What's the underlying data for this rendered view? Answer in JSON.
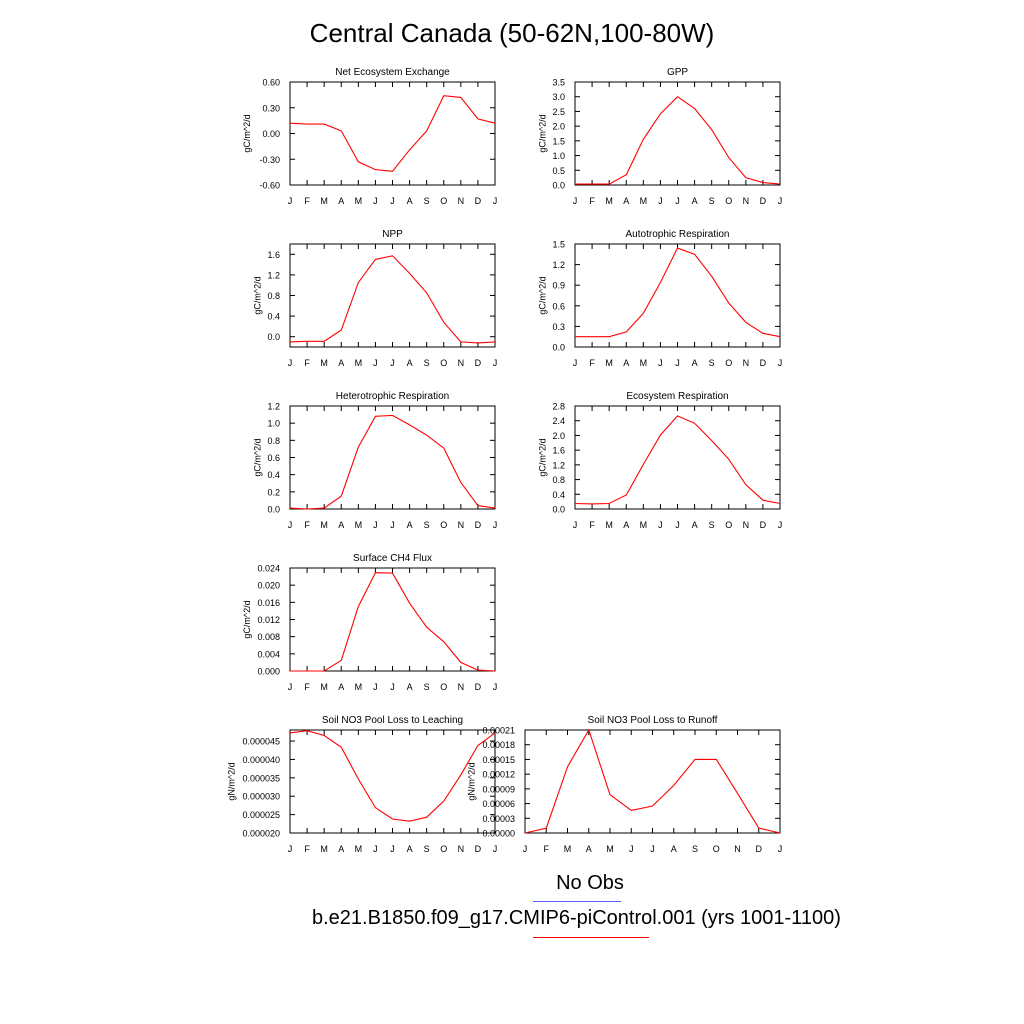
{
  "title": "Central Canada (50-62N,100-80W)",
  "legend": {
    "obs_label": "No Obs",
    "obs_color": "#5b5bff",
    "model_label": "b.e21.B1850.f09_g17.CMIP6-piControl.001 (yrs 1001-1100)",
    "model_color": "#ff0000"
  },
  "chart_data": [
    {
      "type": "line",
      "title": "Net Ecosystem Exchange",
      "ylabel": "gC/m^2/d",
      "categories": [
        "J",
        "F",
        "M",
        "A",
        "M",
        "J",
        "J",
        "A",
        "S",
        "O",
        "N",
        "D",
        "J"
      ],
      "ylim": [
        -0.6,
        0.6
      ],
      "yticks": [
        "0.60",
        "0.30",
        "0.00",
        "-0.30",
        "-0.60"
      ],
      "series": [
        {
          "values": [
            0.12,
            0.11,
            0.11,
            0.03,
            -0.33,
            -0.42,
            -0.44,
            -0.19,
            0.03,
            0.44,
            0.42,
            0.17,
            0.12
          ]
        }
      ]
    },
    {
      "type": "line",
      "title": "GPP",
      "ylabel": "gC/m^2/d",
      "categories": [
        "J",
        "F",
        "M",
        "A",
        "M",
        "J",
        "J",
        "A",
        "S",
        "O",
        "N",
        "D",
        "J"
      ],
      "ylim": [
        0.0,
        3.5
      ],
      "yticks": [
        "3.5",
        "3.0",
        "2.5",
        "2.0",
        "1.5",
        "1.0",
        "0.5",
        "0.0"
      ],
      "series": [
        {
          "values": [
            0.03,
            0.03,
            0.03,
            0.35,
            1.55,
            2.42,
            3.0,
            2.6,
            1.88,
            0.93,
            0.25,
            0.08,
            0.03
          ]
        }
      ]
    },
    {
      "type": "line",
      "title": "NPP",
      "ylabel": "gC/m^2/d",
      "categories": [
        "J",
        "F",
        "M",
        "A",
        "M",
        "J",
        "J",
        "A",
        "S",
        "O",
        "N",
        "D",
        "J"
      ],
      "ylim": [
        -0.2,
        1.8
      ],
      "yticks": [
        "1.6",
        "1.2",
        "0.8",
        "0.4",
        "0.0"
      ],
      "series": [
        {
          "values": [
            -0.1,
            -0.09,
            -0.09,
            0.13,
            1.05,
            1.5,
            1.57,
            1.23,
            0.85,
            0.28,
            -0.1,
            -0.12,
            -0.1
          ]
        }
      ]
    },
    {
      "type": "line",
      "title": "Autotrophic Respiration",
      "ylabel": "gC/m^2/d",
      "categories": [
        "J",
        "F",
        "M",
        "A",
        "M",
        "J",
        "J",
        "A",
        "S",
        "O",
        "N",
        "D",
        "J"
      ],
      "ylim": [
        0.0,
        1.5
      ],
      "yticks": [
        "1.5",
        "1.2",
        "0.9",
        "0.6",
        "0.3",
        "0.0"
      ],
      "series": [
        {
          "values": [
            0.15,
            0.15,
            0.15,
            0.22,
            0.49,
            0.94,
            1.44,
            1.35,
            1.03,
            0.64,
            0.36,
            0.2,
            0.15
          ]
        }
      ]
    },
    {
      "type": "line",
      "title": "Heterotrophic Respiration",
      "ylabel": "gC/m^2/d",
      "categories": [
        "J",
        "F",
        "M",
        "A",
        "M",
        "J",
        "J",
        "A",
        "S",
        "O",
        "N",
        "D",
        "J"
      ],
      "ylim": [
        0.0,
        1.2
      ],
      "yticks": [
        "1.2",
        "1.0",
        "0.8",
        "0.6",
        "0.4",
        "0.2",
        "0.0"
      ],
      "series": [
        {
          "values": [
            0.01,
            0.0,
            0.01,
            0.15,
            0.72,
            1.08,
            1.09,
            0.98,
            0.86,
            0.71,
            0.31,
            0.04,
            0.01
          ]
        }
      ]
    },
    {
      "type": "line",
      "title": "Ecosystem Respiration",
      "ylabel": "gC/m^2/d",
      "categories": [
        "J",
        "F",
        "M",
        "A",
        "M",
        "J",
        "J",
        "A",
        "S",
        "O",
        "N",
        "D",
        "J"
      ],
      "ylim": [
        0.0,
        2.8
      ],
      "yticks": [
        "2.8",
        "2.4",
        "2.0",
        "1.6",
        "1.2",
        "0.8",
        "0.4",
        "0.0"
      ],
      "series": [
        {
          "values": [
            0.15,
            0.14,
            0.15,
            0.38,
            1.21,
            2.01,
            2.53,
            2.33,
            1.86,
            1.35,
            0.66,
            0.24,
            0.15
          ]
        }
      ]
    },
    {
      "type": "line",
      "title": "Surface CH4 Flux",
      "ylabel": "gC/m^2/d",
      "categories": [
        "J",
        "F",
        "M",
        "A",
        "M",
        "J",
        "J",
        "A",
        "S",
        "O",
        "N",
        "D",
        "J"
      ],
      "ylim": [
        0.0,
        0.024
      ],
      "yticks": [
        "0.024",
        "0.020",
        "0.016",
        "0.012",
        "0.008",
        "0.004",
        "0.000"
      ],
      "series": [
        {
          "values": [
            0.0,
            0.0,
            0.0,
            0.0025,
            0.015,
            0.0229,
            0.0228,
            0.0158,
            0.0102,
            0.0068,
            0.002,
            0.0002,
            0.0
          ]
        }
      ]
    },
    {
      "type": "line",
      "title": "Soil NO3 Pool Loss to Leaching",
      "ylabel": "gN/m^2/d",
      "categories": [
        "J",
        "F",
        "M",
        "A",
        "M",
        "J",
        "J",
        "A",
        "S",
        "O",
        "N",
        "D",
        "J"
      ],
      "ylim": [
        2e-05,
        4.8e-05
      ],
      "yticks": [
        "0.000045",
        "0.000040",
        "0.000035",
        "0.000030",
        "0.000025",
        "0.000020"
      ],
      "series": [
        {
          "values": [
            4.72e-05,
            4.78e-05,
            4.65e-05,
            4.33e-05,
            3.47e-05,
            2.69e-05,
            2.38e-05,
            2.32e-05,
            2.43e-05,
            2.87e-05,
            3.58e-05,
            4.38e-05,
            4.72e-05
          ]
        }
      ]
    },
    {
      "type": "line",
      "title": "Soil NO3 Pool Loss to Runoff",
      "ylabel": "gN/m^2/d",
      "categories": [
        "J",
        "F",
        "M",
        "A",
        "M",
        "J",
        "J",
        "A",
        "S",
        "O",
        "N",
        "D",
        "J"
      ],
      "ylim": [
        0.0,
        0.00021
      ],
      "yticks": [
        "0.00021",
        "0.00018",
        "0.00015",
        "0.00012",
        "0.00009",
        "0.00006",
        "0.00003",
        "0.00000"
      ],
      "series": [
        {
          "values": [
            0.0,
            1e-05,
            0.000135,
            0.00021,
            7.8e-05,
            4.6e-05,
            5.5e-05,
            9.7e-05,
            0.00015,
            0.00015,
            8.1e-05,
            1e-05,
            0.0
          ]
        }
      ]
    }
  ]
}
